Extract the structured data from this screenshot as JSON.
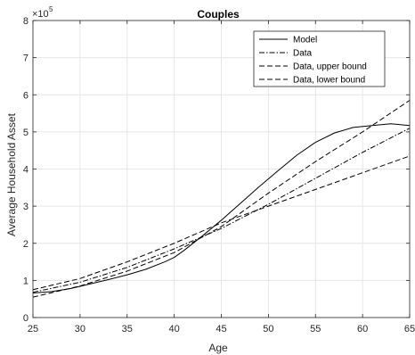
{
  "chart_data": {
    "type": "line",
    "title": "Couples",
    "xlabel": "Age",
    "ylabel": "Average Household Asset",
    "y_multiplier_base": "×10",
    "y_multiplier_exponent": "5",
    "xlim": [
      25,
      65
    ],
    "ylim": [
      0,
      8
    ],
    "xticks": [
      25,
      30,
      35,
      40,
      45,
      50,
      55,
      60,
      65
    ],
    "yticks": [
      0,
      1,
      2,
      3,
      4,
      5,
      6,
      7,
      8
    ],
    "grid": true,
    "legend_position": "top-right",
    "series": [
      {
        "name": "Model",
        "style": "solid",
        "x": [
          25,
          27,
          29,
          31,
          33,
          35,
          37,
          39,
          40,
          41,
          43,
          45,
          47,
          49,
          51,
          53,
          55,
          57,
          59,
          61,
          63,
          65
        ],
        "y": [
          0.66,
          0.7,
          0.78,
          0.9,
          1.02,
          1.15,
          1.3,
          1.5,
          1.62,
          1.8,
          2.2,
          2.62,
          3.07,
          3.52,
          3.95,
          4.37,
          4.72,
          4.97,
          5.12,
          5.17,
          5.22,
          5.17
        ]
      },
      {
        "name": "Data",
        "style": "dashdot",
        "x": [
          25,
          30,
          35,
          40,
          45,
          50,
          55,
          60,
          65
        ],
        "y": [
          0.68,
          0.95,
          1.35,
          1.85,
          2.4,
          3.05,
          3.75,
          4.45,
          5.1
        ]
      },
      {
        "name": "Data, upper bound",
        "style": "dashed",
        "x": [
          25,
          30,
          35,
          40,
          45,
          50,
          55,
          60,
          65
        ],
        "y": [
          0.55,
          0.85,
          1.25,
          1.75,
          2.45,
          3.35,
          4.2,
          5.0,
          5.85
        ]
      },
      {
        "name": "Data, lower bound",
        "style": "dashed",
        "x": [
          25,
          30,
          35,
          40,
          45,
          50,
          55,
          60,
          65
        ],
        "y": [
          0.75,
          1.05,
          1.5,
          2.0,
          2.55,
          3.0,
          3.45,
          3.9,
          4.35
        ]
      }
    ]
  },
  "colors": {
    "line": "#000000",
    "grid": "#e6e6e6",
    "axis": "#262626",
    "legend_border": "#262626"
  }
}
